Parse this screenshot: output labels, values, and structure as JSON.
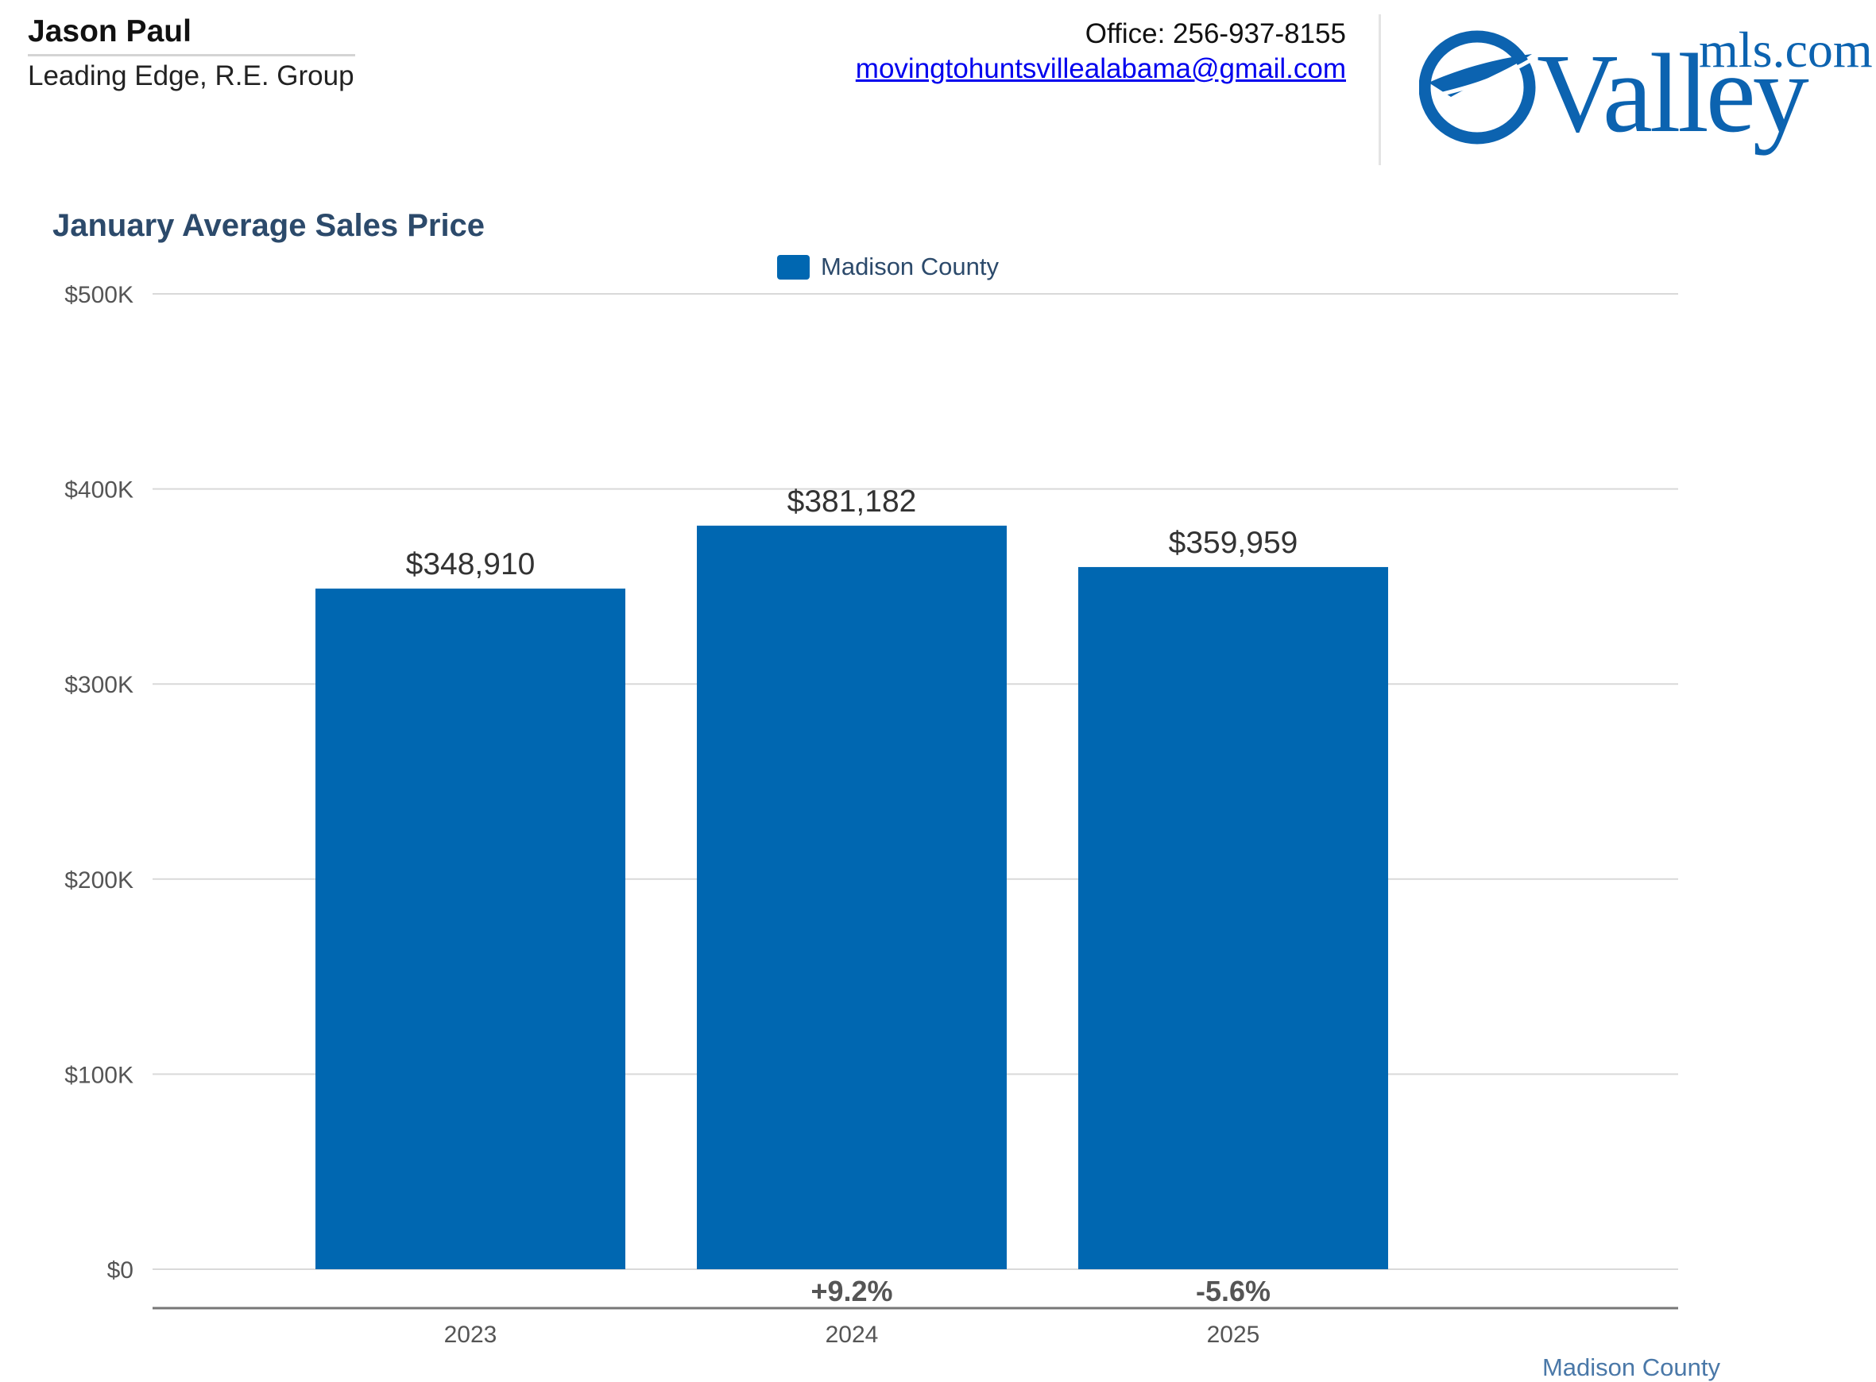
{
  "agent": {
    "name": "Jason Paul",
    "company": "Leading Edge, R.E. Group"
  },
  "contact": {
    "office": "Office: 256-937-8155",
    "email": "movingtohuntsvillealabama@gmail.com"
  },
  "logo": {
    "word": "Valley",
    "suffix": "mls.com",
    "color": "#0c63b0"
  },
  "footer": {
    "note": "Madison County"
  },
  "chart_data": {
    "type": "bar",
    "title": "January Average Sales Price",
    "xlabel": "",
    "ylabel": "",
    "categories": [
      "2023",
      "2024",
      "2025"
    ],
    "series": [
      {
        "name": "Madison County",
        "color": "#0067b1",
        "values": [
          348910,
          381182,
          359959
        ],
        "value_labels": [
          "$348,910",
          "$381,182",
          "$359,959"
        ]
      }
    ],
    "changes": [
      "",
      "+9.2%",
      "-5.6%"
    ],
    "ylim": [
      0,
      500000
    ],
    "yticks": [
      0,
      100000,
      200000,
      300000,
      400000,
      500000
    ],
    "ytick_labels": [
      "$0",
      "$100K",
      "$200K",
      "$300K",
      "$400K",
      "$500K"
    ],
    "grid": true,
    "legend_position": "top-center"
  }
}
